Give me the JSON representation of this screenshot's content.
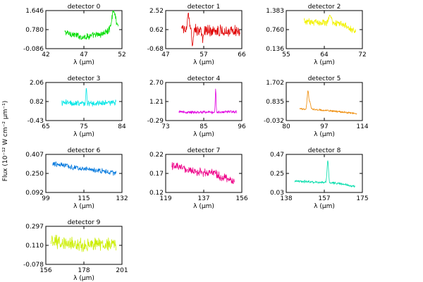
{
  "figure": {
    "ylabel": "Flux (10⁻¹² W cm⁻² μm⁻¹)"
  },
  "chart_data": [
    {
      "type": "line",
      "title": "detector 0",
      "xlabel": "λ (μm)",
      "xticks": [
        "42",
        "47",
        "52"
      ],
      "yticks": [
        "-0.086",
        "0.780",
        "1.646"
      ],
      "xlim": [
        42,
        52
      ],
      "ylim": [
        -0.086,
        1.646
      ],
      "color": "#00dd00",
      "x_range": [
        44.5,
        51.5
      ],
      "shape": "flat-rise",
      "base": [
        0.66,
        0.44,
        0.56,
        0.9
      ],
      "noise": 0.12,
      "peaks": [
        [
          50.9,
          0.82,
          0.25
        ]
      ]
    },
    {
      "type": "line",
      "title": "detector 1",
      "xlabel": "λ (μm)",
      "xticks": [
        "47",
        "57",
        "66"
      ],
      "yticks": [
        "-0.68",
        "0.62",
        "2.52"
      ],
      "xlim": [
        47,
        66
      ],
      "ylim": [
        -0.68,
        2.52
      ],
      "color": "#e00000",
      "x_range": [
        51,
        65.5
      ],
      "shape": "flat",
      "base": [
        0.95,
        0.85,
        0.8
      ],
      "noise": 0.38,
      "peaks": [
        [
          52.6,
          1.4,
          0.2
        ],
        [
          53.7,
          -1.45,
          0.18
        ],
        [
          56.2,
          -0.9,
          0.18
        ]
      ]
    },
    {
      "type": "line",
      "title": "detector 2",
      "xlabel": "λ (μm)",
      "xticks": [
        "55",
        "64",
        "72"
      ],
      "yticks": [
        "0.136",
        "0.760",
        "1.383"
      ],
      "xlim": [
        55,
        72
      ],
      "ylim": [
        0.136,
        1.383
      ],
      "color": "#f2f200",
      "x_range": [
        59,
        70.5
      ],
      "shape": "fall",
      "base": [
        1.02,
        1.0,
        0.98,
        0.7
      ],
      "noise": 0.09,
      "peaks": [
        [
          64.8,
          0.24,
          0.3
        ]
      ]
    },
    {
      "type": "line",
      "title": "detector 3",
      "xlabel": "λ (μm)",
      "xticks": [
        "65",
        "75",
        "84"
      ],
      "yticks": [
        "-0.43",
        "0.82",
        "2.06"
      ],
      "xlim": [
        65,
        84
      ],
      "ylim": [
        -0.43,
        2.06
      ],
      "color": "#00e6e6",
      "x_range": [
        69,
        82.5
      ],
      "shape": "flat",
      "base": [
        0.72,
        0.7,
        0.72
      ],
      "noise": 0.17,
      "peaks": [
        [
          75.1,
          0.95,
          0.12
        ]
      ]
    },
    {
      "type": "line",
      "title": "detector 4",
      "xlabel": "λ (μm)",
      "xticks": [
        "73",
        "85",
        "96"
      ],
      "yticks": [
        "-0.29",
        "1.21",
        "2.70"
      ],
      "xlim": [
        73,
        96
      ],
      "ylim": [
        -0.29,
        2.7
      ],
      "color": "#e000e0",
      "x_range": [
        77,
        94.5
      ],
      "shape": "flat",
      "base": [
        0.38,
        0.36,
        0.42
      ],
      "noise": 0.1,
      "peaks": [
        [
          88.1,
          1.85,
          0.12
        ]
      ]
    },
    {
      "type": "line",
      "title": "detector 5",
      "xlabel": "λ (μm)",
      "xticks": [
        "80",
        "97",
        "114"
      ],
      "yticks": [
        "-0.032",
        "0.835",
        "1.702"
      ],
      "xlim": [
        80,
        114
      ],
      "ylim": [
        -0.032,
        1.702
      ],
      "color": "#ee8800",
      "x_range": [
        86,
        111.5
      ],
      "shape": "flat-fall",
      "base": [
        0.5,
        0.46,
        0.38,
        0.28
      ],
      "noise": 0.035,
      "peaks": [
        [
          89.7,
          0.85,
          0.35
        ],
        [
          90.6,
          0.3,
          0.35
        ]
      ]
    },
    {
      "type": "line",
      "title": "detector 6",
      "xlabel": "λ (μm)",
      "xticks": [
        "99",
        "115",
        "132"
      ],
      "yticks": [
        "0.092",
        "0.250",
        "0.407"
      ],
      "xlim": [
        99,
        132
      ],
      "ylim": [
        0.092,
        0.407
      ],
      "color": "#0077dd",
      "x_range": [
        102,
        129.5
      ],
      "shape": "fall",
      "base": [
        0.33,
        0.3,
        0.28,
        0.25
      ],
      "noise": 0.018,
      "peaks": []
    },
    {
      "type": "line",
      "title": "detector 7",
      "xlabel": "λ (μm)",
      "xticks": [
        "119",
        "137",
        "156"
      ],
      "yticks": [
        "0.12",
        "0.17",
        "0.22"
      ],
      "xlim": [
        119,
        156
      ],
      "ylim": [
        0.12,
        0.22
      ],
      "color": "#ee0088",
      "x_range": [
        122,
        152.5
      ],
      "shape": "fall",
      "base": [
        0.19,
        0.175,
        0.17,
        0.15
      ],
      "noise": 0.009,
      "peaks": []
    },
    {
      "type": "line",
      "title": "detector 8",
      "xlabel": "λ (μm)",
      "xticks": [
        "138",
        "157",
        "175"
      ],
      "yticks": [
        "0.03",
        "0.25",
        "0.47"
      ],
      "xlim": [
        138,
        175
      ],
      "ylim": [
        0.03,
        0.47
      ],
      "color": "#00ddaa",
      "x_range": [
        142,
        171.5
      ],
      "shape": "flat-fall",
      "base": [
        0.16,
        0.15,
        0.14,
        0.1
      ],
      "noise": 0.012,
      "peaks": [
        [
          158.2,
          0.26,
          0.35
        ]
      ]
    },
    {
      "type": "line",
      "title": "detector 9",
      "xlabel": "λ (μm)",
      "xticks": [
        "156",
        "178",
        "201"
      ],
      "yticks": [
        "-0.078",
        "0.110",
        "0.297"
      ],
      "xlim": [
        156,
        201
      ],
      "ylim": [
        -0.078,
        0.297
      ],
      "color": "#ccee00",
      "x_range": [
        159,
        197.5
      ],
      "shape": "flat",
      "base": [
        0.15,
        0.11,
        0.12
      ],
      "noise": 0.055,
      "peaks": []
    }
  ]
}
